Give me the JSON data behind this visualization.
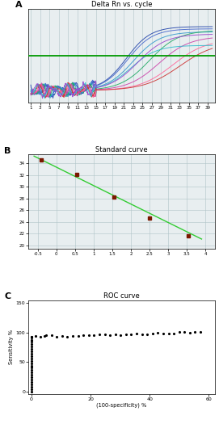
{
  "panel_a": {
    "title": "Delta Rn vs. cycle",
    "xlabel_ticks": [
      1,
      3,
      5,
      7,
      9,
      11,
      13,
      15,
      17,
      19,
      21,
      23,
      25,
      27,
      29,
      31,
      33,
      35,
      37,
      39
    ],
    "threshold_y": 0.42,
    "ylim": [
      -0.2,
      1.05
    ],
    "xlim": [
      0.5,
      40.5
    ],
    "bg_color": "#e8eef0",
    "grid_color": "#b0c4c8",
    "curve_colors": [
      "#2244aa",
      "#4466cc",
      "#3399cc",
      "#22aa66",
      "#cc44aa",
      "#ff6699",
      "#cc3333",
      "#33bbcc",
      "#9944cc"
    ],
    "curve_params": [
      [
        0.85,
        21.5,
        0.38,
        -0.04
      ],
      [
        0.82,
        21.8,
        0.37,
        -0.04
      ],
      [
        0.78,
        23.0,
        0.35,
        -0.04
      ],
      [
        0.8,
        26.5,
        0.32,
        -0.04
      ],
      [
        0.72,
        28.5,
        0.3,
        -0.04
      ],
      [
        0.68,
        31.5,
        0.28,
        -0.04
      ],
      [
        0.65,
        33.0,
        0.26,
        -0.04
      ],
      [
        0.6,
        22.5,
        0.36,
        -0.04
      ],
      [
        0.75,
        24.0,
        0.33,
        -0.04
      ]
    ]
  },
  "panel_b": {
    "title": "Standard curve",
    "xlabel_ticks": [
      -0.5,
      0,
      0.5,
      1,
      1.5,
      2,
      2.5,
      3,
      3.5,
      4
    ],
    "ylabel_ticks": [
      20,
      22,
      24,
      26,
      28,
      30,
      32,
      34
    ],
    "xlim": [
      -0.75,
      4.25
    ],
    "ylim": [
      19.5,
      35.5
    ],
    "scatter_x": [
      -0.4,
      0.55,
      1.55,
      2.5,
      3.55
    ],
    "scatter_y": [
      34.5,
      32.1,
      28.3,
      24.6,
      21.7
    ],
    "line_x": [
      -0.6,
      3.9
    ],
    "line_y": [
      35.2,
      21.1
    ],
    "line_color": "#33cc33",
    "scatter_color": "#7a1800",
    "bg_color": "#e8eef0",
    "grid_color": "#b0c4c8"
  },
  "panel_c": {
    "title": "ROC curve",
    "xlabel": "(100-specificity) %",
    "ylabel": "Sensitivity %",
    "xlabel_ticks": [
      0,
      20,
      40,
      60
    ],
    "ylabel_ticks": [
      0,
      50,
      100,
      150
    ],
    "xlim": [
      -1,
      62
    ],
    "ylim": [
      -5,
      155
    ]
  }
}
